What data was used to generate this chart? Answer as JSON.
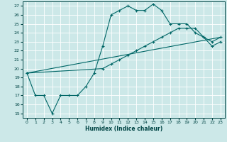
{
  "xlabel": "Humidex (Indice chaleur)",
  "bg_color": "#cce8e8",
  "grid_color": "#ffffff",
  "line_color": "#006666",
  "xlim": [
    -0.5,
    23.5
  ],
  "ylim": [
    14.5,
    27.5
  ],
  "xticks": [
    0,
    1,
    2,
    3,
    4,
    5,
    6,
    7,
    8,
    9,
    10,
    11,
    12,
    13,
    14,
    15,
    16,
    17,
    18,
    19,
    20,
    21,
    22,
    23
  ],
  "yticks": [
    15,
    16,
    17,
    18,
    19,
    20,
    21,
    22,
    23,
    24,
    25,
    26,
    27
  ],
  "line1_x": [
    0,
    1,
    2,
    3,
    4,
    5,
    6,
    7,
    8,
    9,
    10,
    11,
    12,
    13,
    14,
    15,
    16,
    17,
    18,
    19,
    20,
    21,
    22,
    23
  ],
  "line1_y": [
    19.5,
    17.0,
    17.0,
    15.0,
    17.0,
    17.0,
    17.0,
    18.0,
    19.5,
    22.5,
    26.0,
    26.5,
    27.0,
    26.5,
    26.5,
    27.2,
    26.5,
    25.0,
    25.0,
    25.0,
    24.0,
    23.5,
    23.0,
    23.5
  ],
  "line2_x": [
    0,
    9,
    10,
    11,
    12,
    13,
    14,
    15,
    16,
    17,
    18,
    19,
    20,
    21,
    22,
    23
  ],
  "line2_y": [
    19.5,
    20.0,
    20.5,
    21.0,
    21.5,
    22.0,
    22.5,
    23.0,
    23.5,
    24.0,
    24.5,
    24.5,
    24.5,
    23.5,
    22.5,
    23.0
  ],
  "line3_x": [
    0,
    23
  ],
  "line3_y": [
    19.5,
    23.5
  ]
}
